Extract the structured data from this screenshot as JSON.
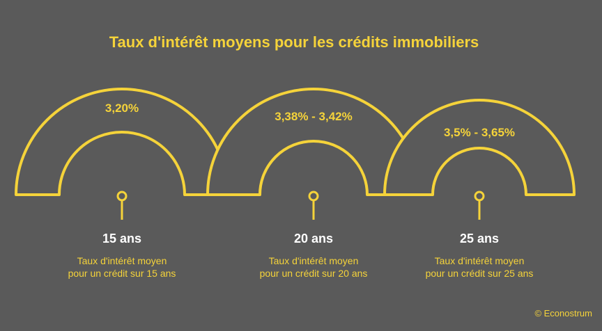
{
  "title": "Taux d'intérêt moyens pour les crédits immobiliers",
  "credit": "© Econostrum",
  "colors": {
    "background": "#5a5a5a",
    "accent": "#f5d33a",
    "text": "#ffffff"
  },
  "chart_data": {
    "type": "infographic",
    "title": "Taux d'intérêt moyens pour les crédits immobiliers",
    "items": [
      {
        "rate": "3,20%",
        "duration": "15 ans",
        "description": "Taux d'intérêt moyen pour un crédit sur 15 ans"
      },
      {
        "rate": "3,38% - 3,42%",
        "duration": "20 ans",
        "description": "Taux d'intérêt moyen pour un crédit sur 20 ans"
      },
      {
        "rate": "3,5% - 3,65%",
        "duration": "25 ans",
        "description": "Taux d'intérêt moyen pour un crédit sur 25 ans"
      }
    ]
  }
}
